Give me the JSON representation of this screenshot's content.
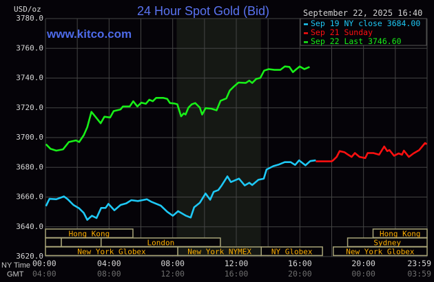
{
  "chart_data": {
    "type": "line",
    "title": "24 Hour Spot Gold (Bid)",
    "watermark": "www.kitco.com",
    "ylabel": "USD/oz",
    "timestamp": "September 22, 2025 16:40",
    "ylim": [
      3620,
      3780
    ],
    "yticks": [
      "3780.0",
      "3760.0",
      "3740.0",
      "3720.0",
      "3700.0",
      "3680.0",
      "3660.0",
      "3640.0",
      "3620.0"
    ],
    "xlim_hours": [
      0,
      24
    ],
    "x_row_labels": {
      "ny": "NY Time",
      "gmt": "GMT"
    },
    "xticks_ny": [
      "00:00",
      "04:00",
      "08:00",
      "12:00",
      "16:00",
      "20:00",
      "23:59"
    ],
    "xticks_gmt": [
      "04:00",
      "08:00",
      "12:00",
      "16:00",
      "20:00",
      "00:00",
      "03:59"
    ],
    "grid": true,
    "shaded_hours": [
      8.25,
      13.55
    ],
    "legend_position": "top-right",
    "colors": {
      "background": "#050308",
      "grid": "#444444",
      "shade": "#151814",
      "session_border": "#a8a478",
      "session_text": "#ffb000",
      "title": "#5a73f0"
    },
    "series": [
      {
        "name": "Sep 19 NY close 3684.00",
        "color": "#1ec8f5",
        "x": [
          0.03,
          0.25,
          0.68,
          1.16,
          1.4,
          1.76,
          2.12,
          2.41,
          2.63,
          2.92,
          3.21,
          3.5,
          3.78,
          3.96,
          4.33,
          4.72,
          5.08,
          5.4,
          5.81,
          6.38,
          6.68,
          7.25,
          7.66,
          8.01,
          8.34,
          8.84,
          9.13,
          9.35,
          9.71,
          10.07,
          10.36,
          10.58,
          10.87,
          11.08,
          11.44,
          11.66,
          12.17,
          12.53,
          12.82,
          13.0,
          13.39,
          13.73,
          13.9,
          14.33,
          14.69,
          15.05,
          15.42,
          15.7,
          15.95,
          16.35,
          16.65,
          17.0
        ],
        "y": [
          3653.9,
          3658.8,
          3658.5,
          3660.4,
          3658.5,
          3654.7,
          3652.4,
          3649.3,
          3644.7,
          3647.4,
          3645.9,
          3652.7,
          3652.7,
          3655.4,
          3651.1,
          3654.7,
          3655.8,
          3657.9,
          3657.3,
          3658.5,
          3656.7,
          3654.2,
          3650.1,
          3647.4,
          3650.5,
          3647.4,
          3646.2,
          3653.1,
          3656.2,
          3662.4,
          3658.2,
          3663.5,
          3664.7,
          3667.8,
          3673.9,
          3670.1,
          3672.4,
          3667.8,
          3669.6,
          3668.1,
          3671.6,
          3672.4,
          3678.5,
          3680.8,
          3681.9,
          3683.5,
          3683.5,
          3681.6,
          3684.7,
          3681.3,
          3684.2,
          3684.7
        ]
      },
      {
        "name": "Sep 21 Sunday",
        "color": "#ff1010",
        "x": [
          17.0,
          18.0,
          18.09,
          18.31,
          18.5,
          18.81,
          19.03,
          19.25,
          19.46,
          19.75,
          20.11,
          20.26,
          20.62,
          20.98,
          21.3,
          21.49,
          21.63,
          21.92,
          22.21,
          22.42,
          22.54,
          22.85,
          23.14,
          23.5,
          23.87,
          23.98
        ],
        "y": [
          3684.0,
          3684.0,
          3684.7,
          3687.0,
          3690.9,
          3690.1,
          3688.5,
          3687.0,
          3689.6,
          3687.0,
          3686.2,
          3689.6,
          3689.6,
          3688.5,
          3694.0,
          3690.9,
          3691.6,
          3687.8,
          3689.3,
          3688.5,
          3691.2,
          3687.0,
          3689.3,
          3691.6,
          3696.3,
          3695.5
        ]
      },
      {
        "name": "Sep 22 Last 3746.60",
        "color": "#18f018",
        "x": [
          0.03,
          0.32,
          0.68,
          1.11,
          1.47,
          1.91,
          2.12,
          2.41,
          2.63,
          2.89,
          3.14,
          3.47,
          3.71,
          4.07,
          4.29,
          4.72,
          4.87,
          5.3,
          5.52,
          5.78,
          6.03,
          6.31,
          6.53,
          6.75,
          6.96,
          7.4,
          7.66,
          7.83,
          8.12,
          8.29,
          8.53,
          8.7,
          8.81,
          8.99,
          9.2,
          9.42,
          9.71,
          9.85,
          10.07,
          10.43,
          10.76,
          11.01,
          11.37,
          11.59,
          11.85,
          12.14,
          12.6,
          12.82,
          13.0,
          13.25,
          13.51,
          13.75,
          14.04,
          14.4,
          14.77,
          15.05,
          15.34,
          15.56,
          15.78,
          15.99,
          16.28,
          16.61
        ],
        "y": [
          3695.5,
          3692.4,
          3691.2,
          3692.1,
          3697.0,
          3698.1,
          3697.0,
          3701.6,
          3707.0,
          3717.3,
          3714.0,
          3709.6,
          3714.0,
          3713.5,
          3717.8,
          3718.9,
          3720.9,
          3720.9,
          3724.4,
          3720.9,
          3723.5,
          3722.7,
          3725.5,
          3724.4,
          3726.7,
          3726.7,
          3726.0,
          3723.2,
          3722.9,
          3722.4,
          3714.3,
          3716.3,
          3715.5,
          3720.1,
          3722.4,
          3723.2,
          3720.1,
          3715.5,
          3719.8,
          3719.4,
          3718.3,
          3724.7,
          3726.3,
          3731.6,
          3734.3,
          3737.0,
          3736.7,
          3738.3,
          3736.7,
          3739.4,
          3740.1,
          3745.0,
          3746.0,
          3745.5,
          3745.5,
          3747.8,
          3747.5,
          3744.0,
          3746.0,
          3747.8,
          3746.0,
          3747.5
        ]
      }
    ],
    "sessions": [
      {
        "label": "Hong Kong",
        "row": 0,
        "start": 0,
        "end": 5.5
      },
      {
        "label": "Hong Kong",
        "row": 0,
        "start": 20.6,
        "end": 24
      },
      {
        "label": "",
        "row": 1,
        "start": 0,
        "end": 1.0
      },
      {
        "label": "",
        "row": 1,
        "start": 1.0,
        "end": 3.5
      },
      {
        "label": "London",
        "row": 1,
        "start": 3.5,
        "end": 11.0
      },
      {
        "label": "Sydney",
        "row": 1,
        "start": 19.0,
        "end": 24
      },
      {
        "label": "New York Globex",
        "row": 2,
        "start": 0,
        "end": 8.32
      },
      {
        "label": "New York NYMEX",
        "row": 2,
        "start": 8.32,
        "end": 13.57
      },
      {
        "label": "NY Globex",
        "row": 2,
        "start": 13.57,
        "end": 17.42
      },
      {
        "label": "New York Globex",
        "row": 2,
        "start": 18.1,
        "end": 24
      }
    ]
  }
}
